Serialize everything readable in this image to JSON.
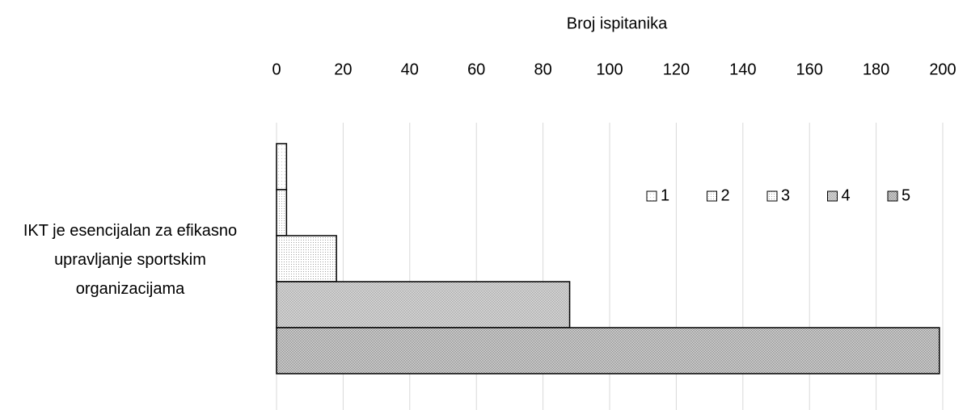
{
  "chart_data": {
    "type": "bar",
    "orientation": "horizontal",
    "x_label": "Broj ispitanika",
    "categories": [
      "IKT je esencijalan za efikasno upravljanje sportskim organizacijama"
    ],
    "series": [
      {
        "name": "1",
        "color": "#c8c8c8",
        "values": [
          3
        ]
      },
      {
        "name": "2",
        "color": "#b0b0b0",
        "values": [
          3
        ]
      },
      {
        "name": "3",
        "color": "#a0a0a0",
        "values": [
          18
        ]
      },
      {
        "name": "4",
        "color": "#8a8a8a",
        "values": [
          88
        ]
      },
      {
        "name": "5",
        "color": "#6e6e6e",
        "values": [
          199
        ]
      }
    ],
    "xlim": [
      0,
      200
    ],
    "xticks": [
      0,
      20,
      40,
      60,
      80,
      100,
      120,
      140,
      160,
      180,
      200
    ],
    "grid": true,
    "legend": "upper right"
  }
}
